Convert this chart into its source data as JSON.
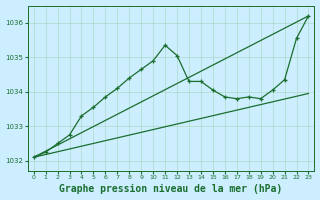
{
  "background_color": "#cceeff",
  "grid_color": "#b0d8c8",
  "line_color": "#1a6e2e",
  "title": "Graphe pression niveau de la mer (hPa)",
  "title_fontsize": 7,
  "xlim": [
    -0.5,
    23.5
  ],
  "ylim": [
    1031.7,
    1036.5
  ],
  "yticks": [
    1032,
    1033,
    1034,
    1035,
    1036
  ],
  "xticks": [
    0,
    1,
    2,
    3,
    4,
    5,
    6,
    7,
    8,
    9,
    10,
    11,
    12,
    13,
    14,
    15,
    16,
    17,
    18,
    19,
    20,
    21,
    22,
    23
  ],
  "series1_x": [
    0,
    1,
    2,
    3,
    4,
    5,
    6,
    7,
    8,
    9,
    10,
    11,
    12,
    13,
    14,
    15,
    16,
    17,
    18,
    19,
    20,
    21,
    22,
    23
  ],
  "series1_y": [
    1032.1,
    1032.25,
    1032.5,
    1032.75,
    1033.3,
    1033.55,
    1033.85,
    1034.1,
    1034.4,
    1034.65,
    1034.9,
    1035.35,
    1035.05,
    1034.3,
    1034.3,
    1034.05,
    1033.85,
    1033.8,
    1033.85,
    1033.8,
    1034.05,
    1034.35,
    1035.55,
    1036.2
  ],
  "series2_x": [
    0,
    23
  ],
  "series2_y": [
    1032.1,
    1036.2
  ],
  "series3_x": [
    0,
    23
  ],
  "series3_y": [
    1032.1,
    1033.95
  ]
}
